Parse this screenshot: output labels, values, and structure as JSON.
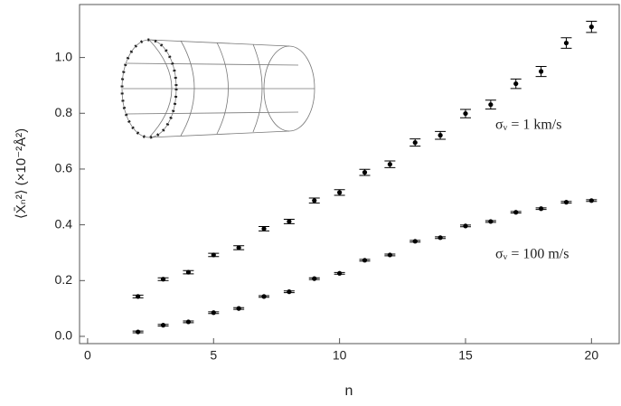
{
  "chart_data": {
    "type": "scatter",
    "x_label": "n",
    "y_label": "⟨X̄ₙ²⟩ (×10⁻²Å²)",
    "xlim": [
      -0.32,
      21.1
    ],
    "ylim": [
      -0.026,
      1.19
    ],
    "xticks": [
      0,
      5,
      10,
      15,
      20
    ],
    "yticks": [
      {
        "value": 0,
        "label": "0.0"
      },
      0.2,
      0.4,
      0.6,
      0.8,
      {
        "value": 1,
        "label": "1.0"
      }
    ],
    "x": [
      2,
      3,
      4,
      5,
      6,
      7,
      8,
      9,
      10,
      11,
      12,
      13,
      14,
      15,
      16,
      17,
      18,
      19,
      20
    ],
    "series": [
      {
        "name": "σᵥ = 1 km/s",
        "color": "#000000",
        "values": [
          0.143,
          0.205,
          0.23,
          0.292,
          0.318,
          0.386,
          0.412,
          0.487,
          0.516,
          0.588,
          0.617,
          0.695,
          0.721,
          0.799,
          0.831,
          0.906,
          0.95,
          1.052,
          1.11
        ],
        "errors": [
          0.005,
          0.005,
          0.006,
          0.006,
          0.007,
          0.008,
          0.008,
          0.009,
          0.01,
          0.011,
          0.012,
          0.013,
          0.014,
          0.015,
          0.016,
          0.017,
          0.018,
          0.019,
          0.02
        ]
      },
      {
        "name": "σᵥ = 100 m/s",
        "color": "#000000",
        "values": [
          0.016,
          0.04,
          0.052,
          0.085,
          0.1,
          0.143,
          0.16,
          0.207,
          0.226,
          0.273,
          0.292,
          0.341,
          0.354,
          0.396,
          0.412,
          0.445,
          0.458,
          0.481,
          0.487
        ],
        "errors": [
          0.003,
          0.003,
          0.003,
          0.003,
          0.003,
          0.003,
          0.003,
          0.003,
          0.003,
          0.003,
          0.003,
          0.003,
          0.003,
          0.003,
          0.003,
          0.003,
          0.003,
          0.003,
          0.003
        ]
      }
    ]
  }
}
